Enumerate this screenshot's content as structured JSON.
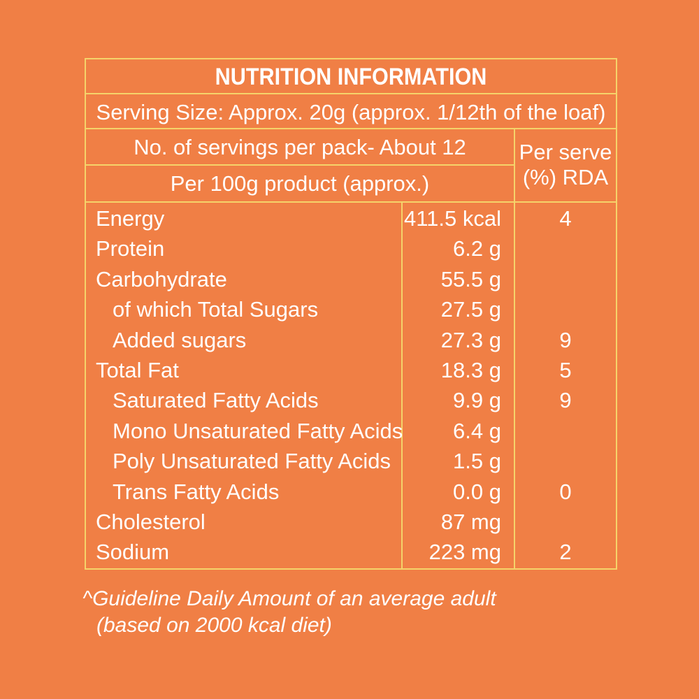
{
  "panel": {
    "title": "NUTRITION INFORMATION",
    "serving_size": "Serving Size: Approx. 20g (approx. 1/12th of the loaf)",
    "servings_per_pack": "No. of servings per pack- About 12",
    "per_100g": "Per 100g product (approx.)",
    "rda_header_line1": "Per serve",
    "rda_header_line2": "(%) RDA",
    "rows": [
      {
        "name": "Energy",
        "amount": "411.5 kcal",
        "rda": "4"
      },
      {
        "name": "Protein",
        "amount": "6.2 g",
        "rda": ""
      },
      {
        "name": "Carbohydrate",
        "amount": "55.5 g",
        "rda": ""
      },
      {
        "name": "of which Total Sugars",
        "amount": "27.5 g",
        "rda": ""
      },
      {
        "name": "Added sugars",
        "amount": "27.3 g",
        "rda": "9"
      },
      {
        "name": "Total Fat",
        "amount": "18.3 g",
        "rda": "5"
      },
      {
        "name": "Saturated Fatty Acids",
        "amount": "9.9 g",
        "rda": "9"
      },
      {
        "name": "Mono Unsaturated Fatty Acids",
        "amount": "6.4 g",
        "rda": ""
      },
      {
        "name": "Poly Unsaturated Fatty Acids",
        "amount": "1.5 g",
        "rda": ""
      },
      {
        "name": "Trans Fatty Acids",
        "amount": "0.0 g",
        "rda": "0"
      },
      {
        "name": "Cholesterol",
        "amount": "87 mg",
        "rda": ""
      },
      {
        "name": "Sodium",
        "amount": "223 mg",
        "rda": "2"
      }
    ]
  },
  "footnote": {
    "line1": "^Guideline Daily Amount of an average adult",
    "line2": "(based on 2000 kcal diet)"
  },
  "colors": {
    "background": "#F07F45",
    "border": "#F5D36A",
    "text": "#FFFFFF"
  }
}
